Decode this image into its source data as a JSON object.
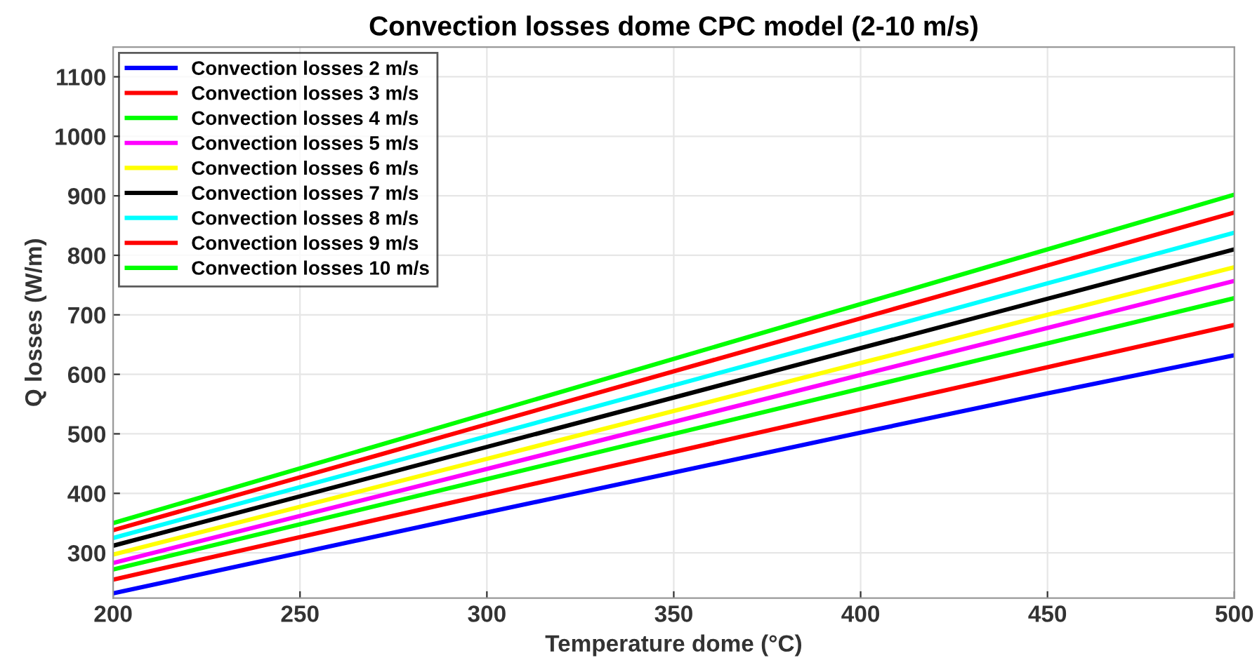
{
  "chart_data": {
    "type": "line",
    "title": "Convection losses dome CPC model (2-10 m/s)",
    "xlabel": "Temperature dome (°C)",
    "ylabel": "Q losses (W/m)",
    "x": [
      200,
      300,
      400,
      450,
      500
    ],
    "series": [
      {
        "name": "Convection losses 2 m/s",
        "color": "#0000ff",
        "values": [
          232,
          368,
          502,
          568,
          632
        ]
      },
      {
        "name": "Convection losses 3 m/s",
        "color": "#ff0000",
        "values": [
          255,
          398,
          541,
          612,
          683
        ]
      },
      {
        "name": "Convection losses 4 m/s",
        "color": "#00ff00",
        "values": [
          272,
          424,
          576,
          652,
          728
        ]
      },
      {
        "name": "Convection losses 5 m/s",
        "color": "#ff00ff",
        "values": [
          283,
          441,
          599,
          678,
          757
        ]
      },
      {
        "name": "Convection losses 6 m/s",
        "color": "#ffff00",
        "values": [
          297,
          458,
          619,
          700,
          780
        ]
      },
      {
        "name": "Convection losses 7 m/s",
        "color": "#000000",
        "values": [
          312,
          478,
          644,
          727,
          810
        ]
      },
      {
        "name": "Convection losses 8 m/s",
        "color": "#00ffff",
        "values": [
          325,
          496,
          667,
          753,
          838
        ]
      },
      {
        "name": "Convection losses 9 m/s",
        "color": "#ff0000",
        "values": [
          338,
          516,
          694,
          783,
          872
        ]
      },
      {
        "name": "Convection losses 10 m/s",
        "color": "#00ff00",
        "values": [
          350,
          534,
          718,
          810,
          902
        ]
      }
    ],
    "xlim": [
      200,
      500
    ],
    "xticks": [
      200,
      250,
      300,
      350,
      400,
      450,
      500
    ],
    "ylim": [
      224,
      1150
    ],
    "yticks": [
      300,
      400,
      500,
      600,
      700,
      800,
      900,
      1000,
      1100
    ],
    "grid": true,
    "legend": "top left",
    "marker": "none",
    "line_style": "solid"
  }
}
